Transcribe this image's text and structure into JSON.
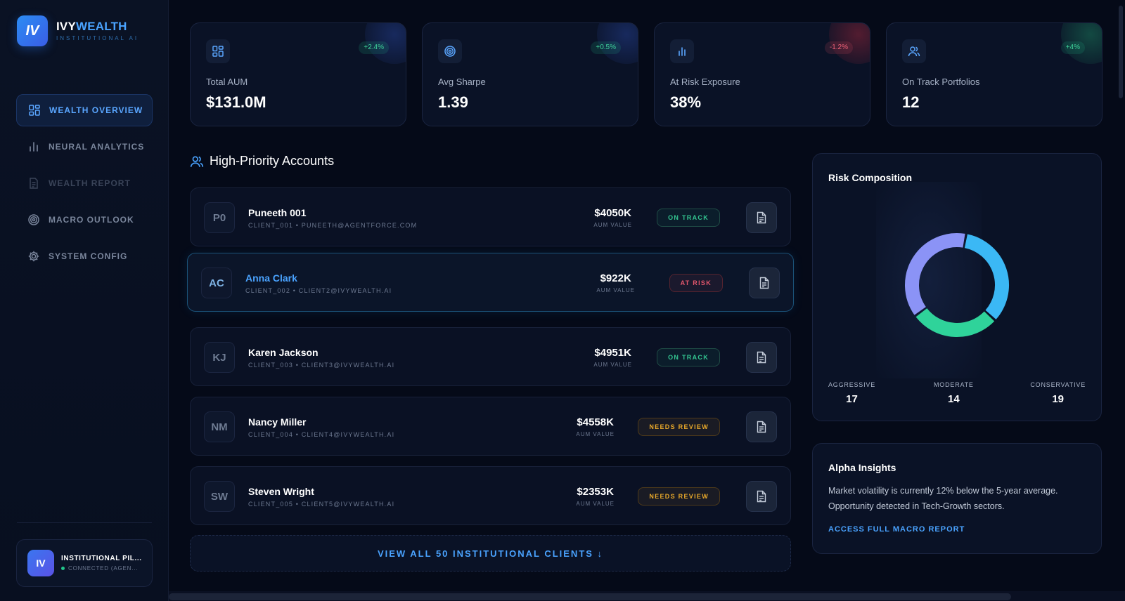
{
  "brand": {
    "logo": "IV",
    "name_part1": "IVY",
    "name_part2": "WEALTH",
    "subtitle": "INSTITUTIONAL AI"
  },
  "sidebar": {
    "items": [
      {
        "label": "WEALTH OVERVIEW",
        "icon": "grid-icon",
        "active": true
      },
      {
        "label": "NEURAL ANALYTICS",
        "icon": "bar-chart-icon"
      },
      {
        "label": "WEALTH REPORT",
        "icon": "document-icon",
        "disabled": true
      },
      {
        "label": "MACRO OUTLOOK",
        "icon": "target-icon"
      },
      {
        "label": "SYSTEM CONFIG",
        "icon": "gear-icon"
      }
    ],
    "profile": {
      "initials": "IV",
      "name": "INSTITUTIONAL PIL...",
      "status": "CONNECTED (AGEN..."
    }
  },
  "stats": [
    {
      "label": "Total AUM",
      "value": "$131.0M",
      "change": "+2.4%",
      "icon": "grid-icon",
      "trend": "up"
    },
    {
      "label": "Avg Sharpe",
      "value": "1.39",
      "change": "+0.5%",
      "icon": "target-icon",
      "trend": "up"
    },
    {
      "label": "At Risk Exposure",
      "value": "38%",
      "change": "-1.2%",
      "icon": "bar-chart-icon",
      "trend": "down"
    },
    {
      "label": "On Track Portfolios",
      "value": "12",
      "change": "+4%",
      "icon": "users-icon",
      "trend": "up"
    }
  ],
  "accounts": {
    "title": "High-Priority Accounts",
    "value_label": "AUM VALUE",
    "rows": [
      {
        "initials": "P0",
        "name": "Puneeth 001",
        "meta": "CLIENT_001 • PUNEETH@AGENTFORCE.COM",
        "value": "$4050K",
        "status": "ON TRACK",
        "status_type": "ok"
      },
      {
        "initials": "AC",
        "name": "Anna Clark",
        "meta": "CLIENT_002 • CLIENT2@IVYWEALTH.AI",
        "value": "$922K",
        "status": "AT RISK",
        "status_type": "risk",
        "selected": true
      },
      {
        "initials": "KJ",
        "name": "Karen Jackson",
        "meta": "CLIENT_003 • CLIENT3@IVYWEALTH.AI",
        "value": "$4951K",
        "status": "ON TRACK",
        "status_type": "ok"
      },
      {
        "initials": "NM",
        "name": "Nancy Miller",
        "meta": "CLIENT_004 • CLIENT4@IVYWEALTH.AI",
        "value": "$4558K",
        "status": "NEEDS REVIEW",
        "status_type": "review"
      },
      {
        "initials": "SW",
        "name": "Steven Wright",
        "meta": "CLIENT_005 • CLIENT5@IVYWEALTH.AI",
        "value": "$2353K",
        "status": "NEEDS REVIEW",
        "status_type": "review"
      }
    ],
    "view_all": "VIEW ALL 50 INSTITUTIONAL CLIENTS ↓"
  },
  "risk": {
    "title": "Risk Composition",
    "segments": [
      {
        "label": "AGGRESSIVE",
        "value": 17,
        "color": "#3bb8f5"
      },
      {
        "label": "MODERATE",
        "value": 14,
        "color": "#2fd39a"
      },
      {
        "label": "CONSERVATIVE",
        "value": 19,
        "color": "#8b93f6"
      }
    ]
  },
  "insights": {
    "title": "Alpha Insights",
    "text": "Market volatility is currently 12% below the 5-year average. Opportunity detected in Tech-Growth sectors.",
    "link": "ACCESS FULL MACRO REPORT"
  },
  "colors": {
    "accent": "#4aa3ff",
    "positive": "#3fd49b",
    "negative": "#ef6178",
    "warning": "#e9a92a",
    "background": "#050a18"
  }
}
